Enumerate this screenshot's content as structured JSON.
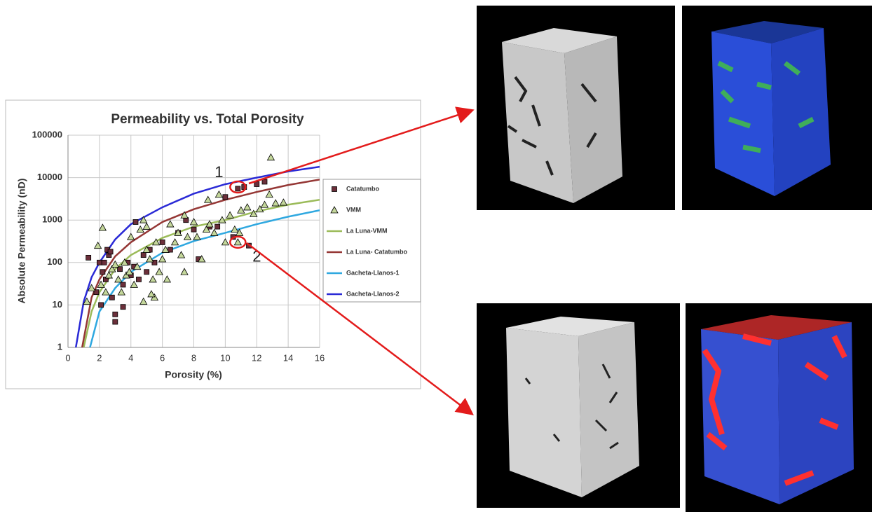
{
  "chart_data": {
    "type": "scatter",
    "title": "Permeability vs. Total Porosity",
    "x_label": "Porosity (%)",
    "y_label": "Absolute Permeability (nD)",
    "xlim": [
      0,
      16
    ],
    "xticks": [
      0,
      2,
      4,
      6,
      8,
      10,
      12,
      14,
      16
    ],
    "ylim": [
      1,
      100000
    ],
    "yticks": [
      1,
      10,
      100,
      1000,
      10000,
      100000
    ],
    "ylog": true,
    "grid": true,
    "series": [
      {
        "name": "Catatumbo",
        "color": "#6b2f3a",
        "mode": "markers",
        "marker": "square",
        "x": [
          1.3,
          2,
          2.2,
          2.3,
          2.5,
          2.4,
          2.6,
          2.7,
          1.8,
          2.1,
          3,
          3,
          3.3,
          3.5,
          3.8,
          4,
          4.2,
          4.3,
          4.8,
          5,
          5.5,
          6,
          6.5,
          7,
          7.5,
          8,
          8.3,
          9,
          9.5,
          10,
          10.8,
          11.2,
          12,
          12.5,
          11.5,
          10.5,
          3.5,
          2.8,
          4.5,
          5.2
        ],
        "values": [
          130,
          100,
          60,
          100,
          200,
          40,
          150,
          180,
          20,
          10,
          6,
          4,
          70,
          30,
          100,
          50,
          80,
          900,
          150,
          60,
          100,
          300,
          200,
          500,
          1000,
          600,
          120,
          700,
          700,
          3500,
          5500,
          6000,
          7000,
          8000,
          250,
          400,
          9,
          15,
          40,
          200
        ]
      },
      {
        "name": "VMM",
        "color": "#c4d79b",
        "mode": "markers",
        "marker": "triangle",
        "x": [
          1.2,
          1.5,
          1.9,
          2.2,
          2.1,
          2.4,
          2.6,
          2.8,
          3,
          3.2,
          3.4,
          3.6,
          3.7,
          3.9,
          4,
          4.2,
          4.4,
          4.6,
          4.8,
          5,
          5,
          5.2,
          5.4,
          5.5,
          5.6,
          5.8,
          6,
          6.2,
          6.3,
          6.5,
          6.8,
          7,
          7.2,
          7.4,
          7.4,
          7.6,
          8,
          8.2,
          8.5,
          8.8,
          8.9,
          9,
          9.3,
          9.6,
          9.8,
          10,
          10.3,
          10.6,
          10.8,
          10.9,
          11,
          11.4,
          11.8,
          12.2,
          12.5,
          12.8,
          12.9,
          13.2,
          13.7,
          4.8,
          5.3
        ],
        "values": [
          12,
          25,
          250,
          660,
          30,
          20,
          50,
          70,
          90,
          40,
          20,
          100,
          50,
          60,
          400,
          30,
          80,
          600,
          1000,
          700,
          200,
          120,
          40,
          15,
          300,
          60,
          120,
          200,
          40,
          800,
          300,
          500,
          150,
          60,
          1300,
          400,
          900,
          400,
          120,
          600,
          3000,
          800,
          500,
          4000,
          1000,
          300,
          1300,
          600,
          300,
          500,
          1700,
          2000,
          1400,
          1800,
          2300,
          4000,
          30000,
          2500,
          2600,
          12,
          18
        ]
      },
      {
        "name": "La Luna-VMM",
        "color": "#9bbb59",
        "mode": "line",
        "x": [
          1,
          1.5,
          2,
          3,
          4,
          6,
          8,
          10,
          12,
          14,
          16
        ],
        "values": [
          1,
          7,
          20,
          70,
          150,
          380,
          700,
          1000,
          1600,
          2300,
          3000
        ]
      },
      {
        "name": "La Luna- Catatumbo",
        "color": "#953735",
        "mode": "line",
        "x": [
          0.9,
          1.5,
          2,
          3,
          4,
          6,
          8,
          10,
          12,
          14,
          16
        ],
        "values": [
          1,
          15,
          40,
          140,
          300,
          900,
          1800,
          3000,
          4600,
          6700,
          9000
        ]
      },
      {
        "name": "Gacheta-Llanos-1",
        "color": "#2fa8e0",
        "mode": "line",
        "x": [
          1.4,
          2,
          3,
          4,
          6,
          8,
          10,
          12,
          14,
          16
        ],
        "values": [
          1,
          7,
          25,
          60,
          170,
          320,
          500,
          800,
          1200,
          1700
        ]
      },
      {
        "name": "Gacheta-Llanos-2",
        "color": "#2a2ad6",
        "mode": "line",
        "x": [
          0.5,
          1,
          1.5,
          2,
          3,
          4,
          6,
          8,
          10,
          12,
          14,
          16
        ],
        "values": [
          1,
          12,
          45,
          100,
          350,
          800,
          2000,
          4200,
          7000,
          10000,
          14000,
          18000
        ]
      }
    ],
    "annotations": [
      {
        "text": "1",
        "x": 10.8,
        "y": 6000
      },
      {
        "text": "2",
        "x": 10.8,
        "y": 300
      }
    ]
  }
}
